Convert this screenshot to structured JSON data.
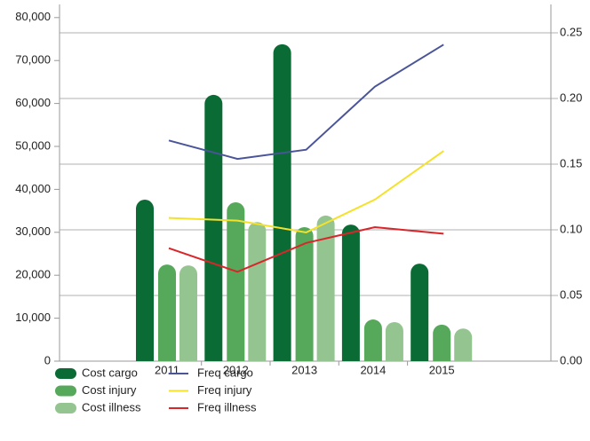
{
  "chart_data": {
    "type": "bar_line",
    "categories": [
      "2011",
      "2012",
      "2013",
      "2014",
      "2015"
    ],
    "series": [
      {
        "name": "Cost cargo",
        "color": "#0b6b34",
        "type": "bar",
        "values": [
          37600,
          62000,
          73800,
          31800,
          22700
        ]
      },
      {
        "name": "Cost injury",
        "color": "#56a85a",
        "type": "bar",
        "values": [
          22500,
          37000,
          31200,
          9700,
          8500
        ]
      },
      {
        "name": "Cost illness",
        "color": "#94c490",
        "type": "bar",
        "values": [
          22300,
          32400,
          33900,
          9100,
          7600
        ]
      },
      {
        "name": "Freq cargo",
        "color": "#4a5499",
        "type": "line",
        "axis": "y2",
        "values": [
          0.168,
          0.154,
          0.161,
          0.209,
          0.241
        ]
      },
      {
        "name": "Freq injury",
        "color": "#f5e12a",
        "type": "line",
        "axis": "y2",
        "values": [
          0.109,
          0.107,
          0.098,
          0.123,
          0.16
        ]
      },
      {
        "name": "Freq illness",
        "color": "#d8262a",
        "type": "line",
        "axis": "y2",
        "values": [
          0.086,
          0.068,
          0.09,
          0.102,
          0.097
        ]
      }
    ],
    "ylim": [
      0,
      83060
    ],
    "yticks": [
      0,
      {
        "value": 10000,
        "label": "10,000"
      },
      {
        "value": 20000,
        "label": "20,000"
      },
      {
        "value": 30000,
        "label": "30,000"
      },
      {
        "value": 40000,
        "label": "40,000"
      },
      {
        "value": 50000,
        "label": "50,000"
      },
      {
        "value": 60000,
        "label": "60,000"
      },
      {
        "value": 70000,
        "label": "70,000"
      },
      {
        "value": 80000,
        "label": "80,000"
      }
    ],
    "y2lim": [
      0,
      0.2716
    ],
    "y2ticks": [
      {
        "value": 0,
        "label": "0.00"
      },
      0.05,
      {
        "value": 0.1,
        "label": "0.10"
      },
      0.15,
      {
        "value": 0.2,
        "label": "0.20"
      },
      0.25
    ],
    "grid": true
  }
}
